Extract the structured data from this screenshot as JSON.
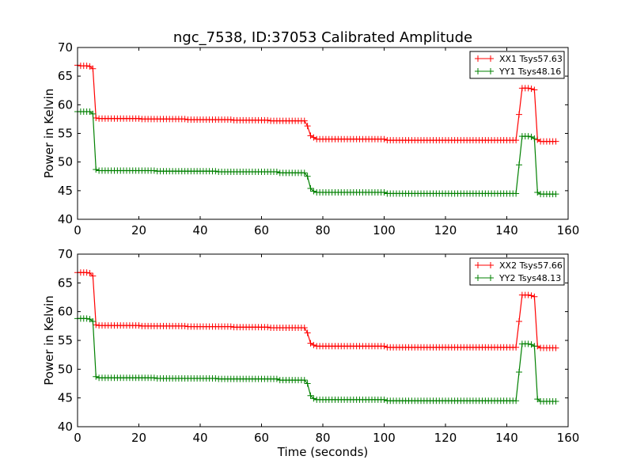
{
  "figure": {
    "title": "ngc_7538, ID:37053 Calibrated Amplitude"
  },
  "chart_data": [
    {
      "type": "line",
      "title": "ngc_7538, ID:37053 Calibrated Amplitude",
      "xlabel": "",
      "ylabel": "Power in Kelvin",
      "xlim": [
        0,
        160
      ],
      "ylim": [
        40,
        70
      ],
      "xticks": [
        0,
        20,
        40,
        60,
        80,
        100,
        120,
        140,
        160
      ],
      "yticks": [
        40,
        45,
        50,
        55,
        60,
        65,
        70
      ],
      "grid": false,
      "legend_position": "top-right",
      "x_start": 0,
      "x_step": 1,
      "series": [
        {
          "name": "XX1 Tsys57.63",
          "color": "#ff0000",
          "marker": "+",
          "values": [
            66.9,
            66.8,
            66.8,
            66.8,
            66.7,
            66.3,
            57.7,
            57.6,
            57.6,
            57.6,
            57.6,
            57.6,
            57.6,
            57.6,
            57.6,
            57.6,
            57.6,
            57.6,
            57.6,
            57.6,
            57.6,
            57.5,
            57.5,
            57.5,
            57.5,
            57.5,
            57.5,
            57.5,
            57.5,
            57.5,
            57.5,
            57.5,
            57.5,
            57.5,
            57.5,
            57.5,
            57.4,
            57.4,
            57.4,
            57.4,
            57.4,
            57.4,
            57.4,
            57.4,
            57.4,
            57.4,
            57.4,
            57.4,
            57.4,
            57.4,
            57.4,
            57.3,
            57.3,
            57.3,
            57.3,
            57.3,
            57.3,
            57.3,
            57.3,
            57.3,
            57.3,
            57.3,
            57.3,
            57.2,
            57.2,
            57.2,
            57.2,
            57.2,
            57.2,
            57.2,
            57.2,
            57.2,
            57.2,
            57.2,
            57.2,
            56.3,
            54.6,
            54.3,
            54.0,
            54.0,
            54.0,
            54.0,
            54.0,
            54.0,
            54.0,
            54.0,
            54.0,
            54.0,
            54.0,
            54.0,
            54.0,
            54.0,
            54.0,
            54.0,
            54.0,
            54.0,
            54.0,
            54.0,
            54.0,
            54.0,
            54.0,
            53.8,
            53.8,
            53.8,
            53.8,
            53.8,
            53.8,
            53.8,
            53.8,
            53.8,
            53.8,
            53.8,
            53.8,
            53.8,
            53.8,
            53.8,
            53.8,
            53.8,
            53.8,
            53.8,
            53.8,
            53.8,
            53.8,
            53.8,
            53.8,
            53.8,
            53.8,
            53.8,
            53.8,
            53.8,
            53.8,
            53.8,
            53.8,
            53.8,
            53.8,
            53.8,
            53.8,
            53.8,
            53.8,
            53.8,
            53.8,
            53.8,
            53.8,
            53.8,
            58.3,
            62.9,
            62.9,
            62.9,
            62.8,
            62.6,
            53.9,
            53.6,
            53.6,
            53.6,
            53.6,
            53.6,
            53.6
          ]
        },
        {
          "name": "YY1 Tsys48.16",
          "color": "#008000",
          "marker": "+",
          "values": [
            58.8,
            58.8,
            58.8,
            58.8,
            58.8,
            58.4,
            48.7,
            48.5,
            48.5,
            48.5,
            48.5,
            48.5,
            48.5,
            48.5,
            48.5,
            48.5,
            48.5,
            48.5,
            48.5,
            48.5,
            48.5,
            48.5,
            48.5,
            48.5,
            48.5,
            48.5,
            48.4,
            48.4,
            48.4,
            48.4,
            48.4,
            48.4,
            48.4,
            48.4,
            48.4,
            48.4,
            48.4,
            48.4,
            48.4,
            48.4,
            48.4,
            48.4,
            48.4,
            48.4,
            48.4,
            48.4,
            48.3,
            48.3,
            48.3,
            48.3,
            48.3,
            48.3,
            48.3,
            48.3,
            48.3,
            48.3,
            48.3,
            48.3,
            48.3,
            48.3,
            48.3,
            48.3,
            48.3,
            48.3,
            48.3,
            48.3,
            48.1,
            48.1,
            48.1,
            48.1,
            48.1,
            48.1,
            48.1,
            48.1,
            48.1,
            47.5,
            45.4,
            44.9,
            44.7,
            44.7,
            44.7,
            44.7,
            44.7,
            44.7,
            44.7,
            44.7,
            44.7,
            44.7,
            44.7,
            44.7,
            44.7,
            44.7,
            44.7,
            44.7,
            44.7,
            44.7,
            44.7,
            44.7,
            44.7,
            44.7,
            44.7,
            44.5,
            44.5,
            44.5,
            44.5,
            44.5,
            44.5,
            44.5,
            44.5,
            44.5,
            44.5,
            44.5,
            44.5,
            44.5,
            44.5,
            44.5,
            44.5,
            44.5,
            44.5,
            44.5,
            44.5,
            44.5,
            44.5,
            44.5,
            44.5,
            44.5,
            44.5,
            44.5,
            44.5,
            44.5,
            44.5,
            44.5,
            44.5,
            44.5,
            44.5,
            44.5,
            44.5,
            44.5,
            44.5,
            44.5,
            44.5,
            44.5,
            44.5,
            44.5,
            49.5,
            54.5,
            54.5,
            54.5,
            54.4,
            54.1,
            44.7,
            44.4,
            44.4,
            44.4,
            44.4,
            44.4,
            44.4
          ]
        }
      ]
    },
    {
      "type": "line",
      "title": "",
      "xlabel": "Time (seconds)",
      "ylabel": "Power in Kelvin",
      "xlim": [
        0,
        160
      ],
      "ylim": [
        40,
        70
      ],
      "xticks": [
        0,
        20,
        40,
        60,
        80,
        100,
        120,
        140,
        160
      ],
      "yticks": [
        40,
        45,
        50,
        55,
        60,
        65,
        70
      ],
      "grid": false,
      "legend_position": "top-right",
      "x_start": 0,
      "x_step": 1,
      "series": [
        {
          "name": "XX2 Tsys57.66",
          "color": "#ff0000",
          "marker": "+",
          "values": [
            66.8,
            66.8,
            66.8,
            66.8,
            66.7,
            66.2,
            57.7,
            57.6,
            57.6,
            57.6,
            57.6,
            57.6,
            57.6,
            57.6,
            57.6,
            57.6,
            57.6,
            57.6,
            57.6,
            57.6,
            57.6,
            57.5,
            57.5,
            57.5,
            57.5,
            57.5,
            57.5,
            57.5,
            57.5,
            57.5,
            57.5,
            57.5,
            57.5,
            57.5,
            57.5,
            57.5,
            57.4,
            57.4,
            57.4,
            57.4,
            57.4,
            57.4,
            57.4,
            57.4,
            57.4,
            57.4,
            57.4,
            57.4,
            57.4,
            57.4,
            57.4,
            57.3,
            57.3,
            57.3,
            57.3,
            57.3,
            57.3,
            57.3,
            57.3,
            57.3,
            57.3,
            57.3,
            57.3,
            57.2,
            57.2,
            57.2,
            57.2,
            57.2,
            57.2,
            57.2,
            57.2,
            57.2,
            57.2,
            57.2,
            57.2,
            56.3,
            54.5,
            54.2,
            54.0,
            54.0,
            54.0,
            54.0,
            54.0,
            54.0,
            54.0,
            54.0,
            54.0,
            54.0,
            54.0,
            54.0,
            54.0,
            54.0,
            54.0,
            54.0,
            54.0,
            54.0,
            54.0,
            54.0,
            54.0,
            54.0,
            54.0,
            53.8,
            53.8,
            53.8,
            53.8,
            53.8,
            53.8,
            53.8,
            53.8,
            53.8,
            53.8,
            53.8,
            53.8,
            53.8,
            53.8,
            53.8,
            53.8,
            53.8,
            53.8,
            53.8,
            53.8,
            53.8,
            53.8,
            53.8,
            53.8,
            53.8,
            53.8,
            53.8,
            53.8,
            53.8,
            53.8,
            53.8,
            53.8,
            53.8,
            53.8,
            53.8,
            53.8,
            53.8,
            53.8,
            53.8,
            53.8,
            53.8,
            53.8,
            53.8,
            58.3,
            62.9,
            62.9,
            62.9,
            62.8,
            62.6,
            54.0,
            53.7,
            53.7,
            53.7,
            53.7,
            53.7,
            53.7
          ]
        },
        {
          "name": "YY2 Tsys48.13",
          "color": "#008000",
          "marker": "+",
          "values": [
            58.8,
            58.8,
            58.8,
            58.8,
            58.7,
            58.3,
            48.7,
            48.5,
            48.5,
            48.5,
            48.5,
            48.5,
            48.5,
            48.5,
            48.5,
            48.5,
            48.5,
            48.5,
            48.5,
            48.5,
            48.5,
            48.5,
            48.5,
            48.5,
            48.5,
            48.5,
            48.4,
            48.4,
            48.4,
            48.4,
            48.4,
            48.4,
            48.4,
            48.4,
            48.4,
            48.4,
            48.4,
            48.4,
            48.4,
            48.4,
            48.4,
            48.4,
            48.4,
            48.4,
            48.4,
            48.4,
            48.3,
            48.3,
            48.3,
            48.3,
            48.3,
            48.3,
            48.3,
            48.3,
            48.3,
            48.3,
            48.3,
            48.3,
            48.3,
            48.3,
            48.3,
            48.3,
            48.3,
            48.3,
            48.3,
            48.3,
            48.1,
            48.1,
            48.1,
            48.1,
            48.1,
            48.1,
            48.1,
            48.1,
            48.1,
            47.5,
            45.4,
            44.9,
            44.7,
            44.7,
            44.7,
            44.7,
            44.7,
            44.7,
            44.7,
            44.7,
            44.7,
            44.7,
            44.7,
            44.7,
            44.7,
            44.7,
            44.7,
            44.7,
            44.7,
            44.7,
            44.7,
            44.7,
            44.7,
            44.7,
            44.7,
            44.5,
            44.5,
            44.5,
            44.5,
            44.5,
            44.5,
            44.5,
            44.5,
            44.5,
            44.5,
            44.5,
            44.5,
            44.5,
            44.5,
            44.5,
            44.5,
            44.5,
            44.5,
            44.5,
            44.5,
            44.5,
            44.5,
            44.5,
            44.5,
            44.5,
            44.5,
            44.5,
            44.5,
            44.5,
            44.5,
            44.5,
            44.5,
            44.5,
            44.5,
            44.5,
            44.5,
            44.5,
            44.5,
            44.5,
            44.5,
            44.5,
            44.5,
            44.5,
            49.5,
            54.4,
            54.4,
            54.4,
            54.3,
            54.0,
            44.8,
            44.4,
            44.4,
            44.4,
            44.4,
            44.4,
            44.4
          ]
        }
      ]
    }
  ]
}
